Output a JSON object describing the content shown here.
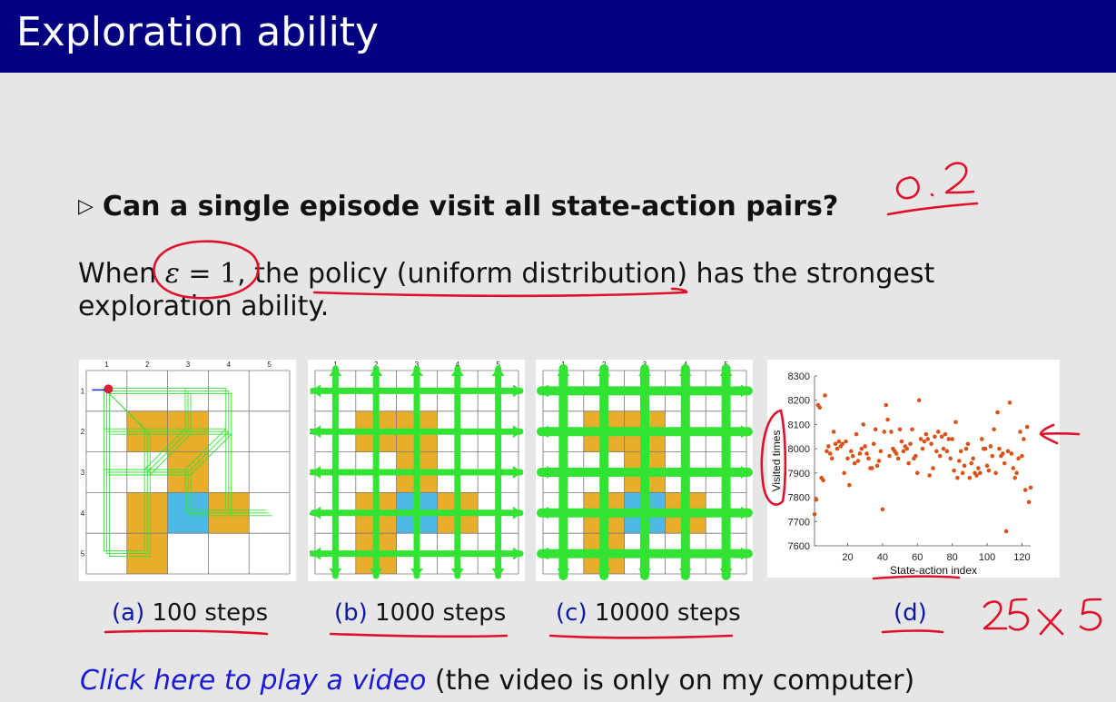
{
  "slide": {
    "title": "Exploration ability",
    "question": "Can a single episode visit all state-action pairs?",
    "body_prefix": "When",
    "epsilon_symbol": "ε",
    "epsilon_rest": " = 1",
    "body_mid": ", the policy (uniform distribution) has the strongest",
    "body_line2": "exploration ability.",
    "video_link": "Click here to play a video",
    "video_note": " (the video is only on my computer)"
  },
  "grid": {
    "col_labels": [
      "1",
      "2",
      "3",
      "4",
      "5"
    ],
    "row_labels": [
      "1",
      "2",
      "3",
      "4",
      "5"
    ],
    "colors": {
      "forbidden": "#e8ad2b",
      "target": "#4cb9e7",
      "trajectory": "#33e333"
    }
  },
  "captions": [
    {
      "label": "(a)",
      "text": " 100 steps"
    },
    {
      "label": "(b)",
      "text": " 1000 steps"
    },
    {
      "label": "(c)",
      "text": " 10000 steps"
    },
    {
      "label": "(d)",
      "text": ""
    }
  ],
  "annotations": {
    "eps_value_note": "0.2",
    "size_note": "25x5"
  },
  "chart_data": {
    "type": "scatter",
    "xlabel": "State-action index",
    "ylabel": "Visited times",
    "xlim": [
      1,
      125
    ],
    "ylim": [
      7600,
      8300
    ],
    "xticks": [
      20,
      40,
      60,
      80,
      100,
      120
    ],
    "yticks": [
      7600,
      7700,
      7800,
      7900,
      8000,
      8100,
      8200,
      8300
    ],
    "color": "#d95319",
    "series": [
      {
        "x": [
          1,
          2,
          3,
          4,
          5,
          6,
          7,
          8,
          9,
          10,
          11,
          12,
          13,
          14,
          15,
          16,
          17,
          18,
          19,
          20,
          21,
          22,
          23,
          24,
          25,
          26,
          27,
          28,
          29,
          30,
          31,
          32,
          33,
          34,
          35,
          36,
          37,
          38,
          39,
          40,
          41,
          42,
          43,
          44,
          45,
          46,
          47,
          48,
          49,
          50,
          51,
          52,
          53,
          54,
          55,
          56,
          57,
          58,
          59,
          60,
          61,
          62,
          63,
          64,
          65,
          66,
          67,
          68,
          69,
          70,
          71,
          72,
          73,
          74,
          75,
          76,
          77,
          78,
          79,
          80,
          81,
          82,
          83,
          84,
          85,
          86,
          87,
          88,
          89,
          90,
          91,
          92,
          93,
          94,
          95,
          96,
          97,
          98,
          99,
          100,
          101,
          102,
          103,
          104,
          105,
          106,
          107,
          108,
          109,
          110,
          111,
          112,
          113,
          114,
          115,
          116,
          117,
          118,
          119,
          120,
          121,
          122,
          123,
          124,
          125
        ],
        "y": [
          7730,
          7790,
          8180,
          8170,
          7880,
          7870,
          8220,
          7990,
          8010,
          7980,
          7960,
          8070,
          8020,
          8000,
          8030,
          8010,
          8020,
          7900,
          8030,
          7960,
          7850,
          7990,
          7970,
          7940,
          8060,
          7950,
          7980,
          8000,
          8100,
          8010,
          7980,
          7960,
          7920,
          7920,
          8020,
          8080,
          7930,
          7950,
          7990,
          7750,
          8070,
          8180,
          8120,
          7970,
          8070,
          8000,
          7990,
          7980,
          7960,
          8080,
          8030,
          7990,
          8010,
          8000,
          7940,
          8020,
          8080,
          7960,
          7970,
          7900,
          8200,
          8040,
          8000,
          8030,
          8060,
          8040,
          7890,
          8020,
          7920,
          8050,
          7990,
          8070,
          7970,
          8050,
          8000,
          8060,
          7990,
          8040,
          7960,
          8040,
          7910,
          8110,
          7880,
          7950,
          7990,
          7900,
          7930,
          8000,
          8020,
          7880,
          7940,
          7960,
          7900,
          7890,
          7920,
          7900,
          8040,
          8000,
          8000,
          7930,
          7910,
          8010,
          7970,
          8080,
          7900,
          8150,
          8000,
          7970,
          7980,
          7940,
          7660,
          7990,
          8190,
          7980,
          7920,
          7880,
          7900,
          7960,
          8070,
          7970,
          8040,
          7830,
          8090,
          7780,
          7840
        ]
      }
    ]
  }
}
